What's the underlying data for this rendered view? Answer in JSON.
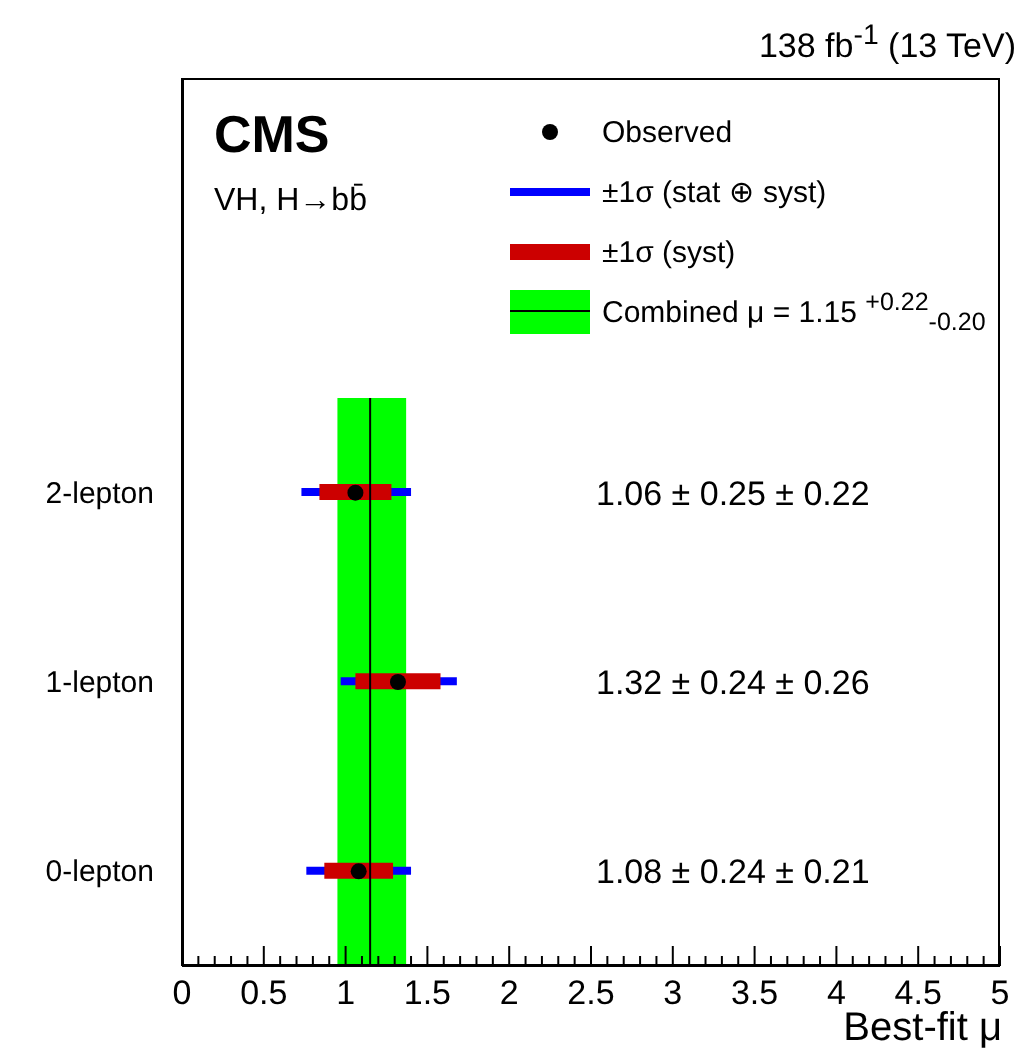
{
  "chart_data": {
    "type": "scatter",
    "orientation": "horizontal",
    "title": "138 fb$^{-1}$ (13 TeV)",
    "xlabel": "Best-fit μ",
    "annotations": [
      "CMS",
      "VH, H→bb̄",
      "1.06 ± 0.25 ± 0.22",
      "1.32 ± 0.24 ± 0.26",
      "1.08 ± 0.24 ± 0.21"
    ],
    "categories": [
      "2-lepton",
      "1-lepton",
      "0-lepton"
    ],
    "series": [
      {
        "name": "Observed",
        "color": "#000000",
        "marker": "circle",
        "values": [
          1.06,
          1.32,
          1.08
        ]
      },
      {
        "name": "±1σ (stat ⊕ syst)",
        "type": "bar",
        "color": "#0000ff",
        "base": [
          0.73,
          0.97,
          0.76
        ],
        "values": [
          0.67,
          0.71,
          0.64
        ]
      },
      {
        "name": "±1σ (syst)",
        "type": "bar",
        "color": "#cc0000",
        "base": [
          0.84,
          1.06,
          0.87
        ],
        "values": [
          0.44,
          0.52,
          0.42
        ]
      }
    ],
    "bands": [
      {
        "axis": "x",
        "from": 0.95,
        "to": 1.37,
        "color": "#00ff00",
        "label": "Combined μ = 1.15 $^{+0.22}$$_{-0.20}$"
      }
    ],
    "ref_lines": [
      {
        "axis": "x",
        "value": 1.15,
        "color": "#000000"
      }
    ],
    "legend": "top right",
    "xlim": [
      0,
      5
    ],
    "xticks": [
      0,
      {
        "value": 0.1,
        "label": null
      },
      {
        "value": 0.2,
        "label": null
      },
      {
        "value": 0.3,
        "label": null
      },
      {
        "value": 0.4,
        "label": null
      },
      0.5,
      {
        "value": 0.6,
        "label": null
      },
      {
        "value": 0.7,
        "label": null
      },
      {
        "value": 0.8,
        "label": null
      },
      {
        "value": 0.9,
        "label": null
      },
      1,
      {
        "value": 1.1,
        "label": null
      },
      {
        "value": 1.2,
        "label": null
      },
      {
        "value": 1.3,
        "label": null
      },
      {
        "value": 1.4,
        "label": null
      },
      1.5,
      {
        "value": 1.6,
        "label": null
      },
      {
        "value": 1.7,
        "label": null
      },
      {
        "value": 1.8,
        "label": null
      },
      {
        "value": 1.9,
        "label": null
      },
      2,
      {
        "value": 2.1,
        "label": null
      },
      {
        "value": 2.2,
        "label": null
      },
      {
        "value": 2.3,
        "label": null
      },
      {
        "value": 2.4,
        "label": null
      },
      2.5,
      {
        "value": 2.6,
        "label": null
      },
      {
        "value": 2.7,
        "label": null
      },
      {
        "value": 2.8,
        "label": null
      },
      {
        "value": 2.9,
        "label": null
      },
      3,
      {
        "value": 3.1,
        "label": null
      },
      {
        "value": 3.2,
        "label": null
      },
      {
        "value": 3.3,
        "label": null
      },
      {
        "value": 3.4,
        "label": null
      },
      3.5,
      {
        "value": 3.6,
        "label": null
      },
      {
        "value": 3.7,
        "label": null
      },
      {
        "value": 3.8,
        "label": null
      },
      {
        "value": 3.9,
        "label": null
      },
      4,
      {
        "value": 4.1,
        "label": null
      },
      {
        "value": 4.2,
        "label": null
      },
      {
        "value": 4.3,
        "label": null
      },
      {
        "value": 4.4,
        "label": null
      },
      4.5,
      {
        "value": 4.6,
        "label": null
      },
      {
        "value": 4.7,
        "label": null
      },
      {
        "value": 4.8,
        "label": null
      },
      {
        "value": 4.9,
        "label": null
      },
      5
    ]
  }
}
